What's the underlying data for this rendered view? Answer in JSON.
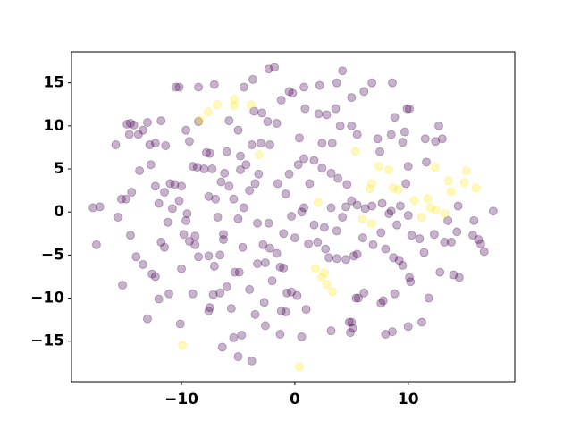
{
  "chart_data": {
    "type": "scatter",
    "xlim": [
      -19.7,
      19.4
    ],
    "ylim": [
      -19.7,
      18.6
    ],
    "xticks": [
      {
        "value": -10,
        "label": "−10"
      },
      0,
      10
    ],
    "yticks": [
      {
        "value": -15,
        "label": "−15"
      },
      {
        "value": -10,
        "label": "−10"
      },
      {
        "value": -5,
        "label": "−5"
      },
      0,
      5,
      10,
      15
    ],
    "grid": false,
    "series": [
      {
        "color": "#440154",
        "x": [
          -17.8,
          -17.2,
          -17.5,
          -15.6,
          -15.3,
          -14.9,
          -14.5,
          -14.4,
          -15.8,
          -14.8,
          -14.5,
          -14.2,
          -13.8,
          -13.4,
          -13.0,
          -12.8,
          -14.6,
          -13.7,
          -15.2,
          -14,
          -13.4,
          -12.6,
          -12.3,
          -12,
          -11.8,
          -13,
          -11.1,
          -10.1,
          -10,
          -9,
          -11.5,
          -11.2,
          -10.8,
          -10.2,
          -9.5,
          -9.8,
          -9.3,
          -8.8,
          -8.5,
          -7.6,
          -12,
          -12.3,
          -11.5,
          -11,
          -10.6,
          -10,
          -12.7,
          -12.3,
          -11.8,
          -10.5,
          -10.2,
          -8.5,
          -7.1,
          -9.6,
          -8.5,
          -7.8,
          -7.5,
          -9.3,
          -9,
          -8.6,
          -8,
          -7.3,
          -11.4,
          -7.6,
          -7,
          -6.8,
          -6.3,
          -6.3,
          -7.1,
          -6.6,
          -7.2,
          -6.6,
          -7.5,
          -7.6,
          -6,
          -5.3,
          -4.9,
          -4.6,
          -5.6,
          -6.4,
          -5.4,
          -4.7,
          -5,
          -3.8,
          -3.5,
          -2.6,
          -1.2,
          -0.8,
          -1.3,
          0.6,
          1,
          -6.5,
          -6.2,
          -5.8,
          -5.4,
          -5,
          -4.5,
          -4,
          -3.5,
          -3.2,
          -4.8,
          -4.3,
          -3.8,
          -3,
          -2.2,
          -1.6,
          -2.4,
          -2.9,
          -3.6,
          -5.8,
          -6,
          -4.8,
          -3.3,
          -2.3,
          -2.8,
          -2.2,
          -1.6,
          -2.6,
          -3.3,
          -2,
          -1.3,
          -0.7,
          -0.3,
          0.2,
          -1,
          -0.3,
          0.6,
          0.8,
          -0.8,
          -1.5,
          -0.5,
          0.3,
          0.4,
          0.8,
          1.3,
          1.7,
          2.4,
          3.2,
          3.8,
          4.6,
          5,
          4.2,
          3.2,
          2.6,
          1.7,
          1.2,
          2,
          2.7,
          3,
          3.7,
          4.5,
          5.2,
          5.5,
          6,
          6.9,
          7.6,
          8,
          8.7,
          9.5,
          10.1,
          11,
          11.4,
          12.3,
          13.2,
          13.8,
          14.3,
          15.7,
          16.4,
          16.7,
          12.8,
          14,
          14.5,
          11.8,
          10.2,
          8.8,
          7.8,
          7.6,
          6.1,
          5.6,
          5.4,
          5,
          4.8,
          5.1,
          4.9,
          3.2,
          8,
          8.6,
          10,
          11.2,
          9.2,
          10.3,
          9,
          8.5,
          8.3,
          9.3,
          10,
          6.8,
          6.2,
          5.5,
          4.5,
          7.5,
          7.3,
          8.5,
          8.8,
          9.9,
          10.1,
          9.7,
          8.6,
          9.5,
          10,
          9.8,
          11.6,
          11.5,
          12.4,
          13,
          12.7,
          5,
          5.5,
          4,
          3.3,
          2.4,
          2.1,
          2.8,
          3.6,
          5,
          6.1,
          6.8,
          4.2,
          3.7,
          2.2,
          0.8,
          0.9,
          -0.5,
          -0.2,
          -1.8,
          -2.3,
          -3.7,
          -4.5,
          -1.2,
          -5,
          -9.6,
          -8.8,
          13.5,
          15.8,
          16.2,
          17.5,
          14.4,
          7.7,
          3.7,
          0,
          -1,
          -2.7,
          -4
        ],
        "y": [
          0.5,
          0.6,
          -3.8,
          -0.6,
          1.5,
          1.5,
          -2.7,
          2.3,
          7.8,
          10.2,
          10.3,
          10.1,
          9.0,
          9.5,
          10.4,
          7.8,
          9.0,
          4.8,
          -8.5,
          -5.2,
          -6.1,
          -7.2,
          -7.5,
          -10.1,
          -3.5,
          -12.4,
          -9.5,
          -13,
          -6.6,
          -9.5,
          -4.1,
          -1.2,
          0.4,
          1.3,
          -0.2,
          -2.6,
          -3.4,
          -3.8,
          -5.2,
          -5.1,
          1.0,
          3,
          2.3,
          3.3,
          3.2,
          3,
          5.5,
          8,
          10.6,
          14.5,
          14.5,
          14.5,
          14.8,
          9.5,
          10.5,
          6.9,
          6.8,
          8.2,
          5.3,
          5.2,
          5,
          5,
          7.7,
          1.8,
          1.5,
          -0.6,
          -2.6,
          -3.2,
          -6.3,
          -5,
          -9.6,
          -9.4,
          -11.1,
          -11.5,
          -8.7,
          -7,
          -7,
          -4.1,
          -11.2,
          -15.7,
          -14.6,
          -14.3,
          -16.8,
          -17.3,
          -11.9,
          -13.2,
          -11.5,
          -11.6,
          -14.2,
          -14.5,
          -11.3,
          3.5,
          4.5,
          3,
          1.5,
          -0.8,
          0.5,
          2.5,
          3.3,
          4.4,
          4.9,
          5.5,
          7.8,
          8,
          7.8,
          10.3,
          10.5,
          11.5,
          11.7,
          10.6,
          7,
          6.5,
          -1.3,
          -1.3,
          -3.8,
          -4.2,
          -4.8,
          -5.9,
          -6,
          -8,
          -6.4,
          -9.4,
          -9.3,
          -9.7,
          -2.5,
          -0.5,
          0,
          0.5,
          2.1,
          3.3,
          4.4,
          5.5,
          8.6,
          6.2,
          3.3,
          6,
          5.1,
          4.5,
          3.9,
          3.2,
          1.3,
          -0.6,
          0.5,
          -1.8,
          -1.5,
          -3.7,
          -3.5,
          -4.3,
          -5.3,
          -5.4,
          -5.5,
          -5.1,
          -4.9,
          -3,
          -3.8,
          -2.4,
          -4.3,
          -5.3,
          -6.2,
          -7.6,
          -3.1,
          -4.7,
          -2.6,
          -3.5,
          -3.5,
          -2.3,
          -2.7,
          -3.7,
          -4.6,
          -7,
          -7.3,
          -7.6,
          -10,
          -8.1,
          -9.5,
          -10.3,
          -10.6,
          -9.4,
          -10,
          -10,
          -12.8,
          -12.8,
          -13.5,
          -14,
          -13.8,
          -14.2,
          -13.9,
          -13.3,
          -12.8,
          -5.6,
          -2.7,
          -1.5,
          0.1,
          -0.2,
          0.7,
          -0.4,
          0.7,
          0.4,
          0.8,
          0.6,
          7,
          8.5,
          9,
          11,
          12,
          12,
          9.3,
          15,
          8.1,
          5.3,
          3.3,
          5.8,
          8.5,
          8.2,
          8.5,
          10,
          10,
          9,
          10,
          8,
          8,
          11.4,
          11.3,
          12,
          13.3,
          14,
          15,
          16.4,
          15,
          14.7,
          14.5,
          12,
          14,
          13.8,
          16.8,
          16.6,
          15.4,
          14.5,
          13,
          9.5,
          -1,
          -2.8,
          -1,
          -1,
          -3.2,
          0.1,
          0.7,
          1,
          -2.2,
          -3,
          -6.5,
          -10.5,
          -9
        ]
      },
      {
        "color": "#fde725",
        "x": [
          -6.85,
          -5.35,
          -5.35,
          -3.86,
          -7.64,
          -8.35,
          -3.15,
          5.35,
          7.4,
          8.27,
          6.77,
          6.61,
          8.66,
          9.13,
          12.36,
          13.54,
          15.12,
          14.96,
          15.98,
          13.78,
          11.73,
          11.97,
          12.44,
          13.23,
          10.55,
          11.18,
          5.98,
          6.77,
          1.81,
          2.6,
          2.36,
          3.31,
          2.83,
          0.39,
          -9.92,
          2.05
        ],
        "y": [
          12.46,
          13.08,
          12.36,
          12.46,
          11.63,
          10.7,
          6.65,
          7.06,
          5.3,
          4.88,
          3.32,
          2.7,
          2.8,
          2.6,
          5.19,
          3.63,
          4.78,
          3.43,
          2.8,
          2.39,
          1.56,
          0.52,
          0.21,
          -0.21,
          1.35,
          -0.62,
          -0.83,
          -1.35,
          -6.54,
          -7.06,
          -7.58,
          -9.24,
          -8.41,
          -17.96,
          -15.47,
          1.14
        ]
      }
    ]
  }
}
